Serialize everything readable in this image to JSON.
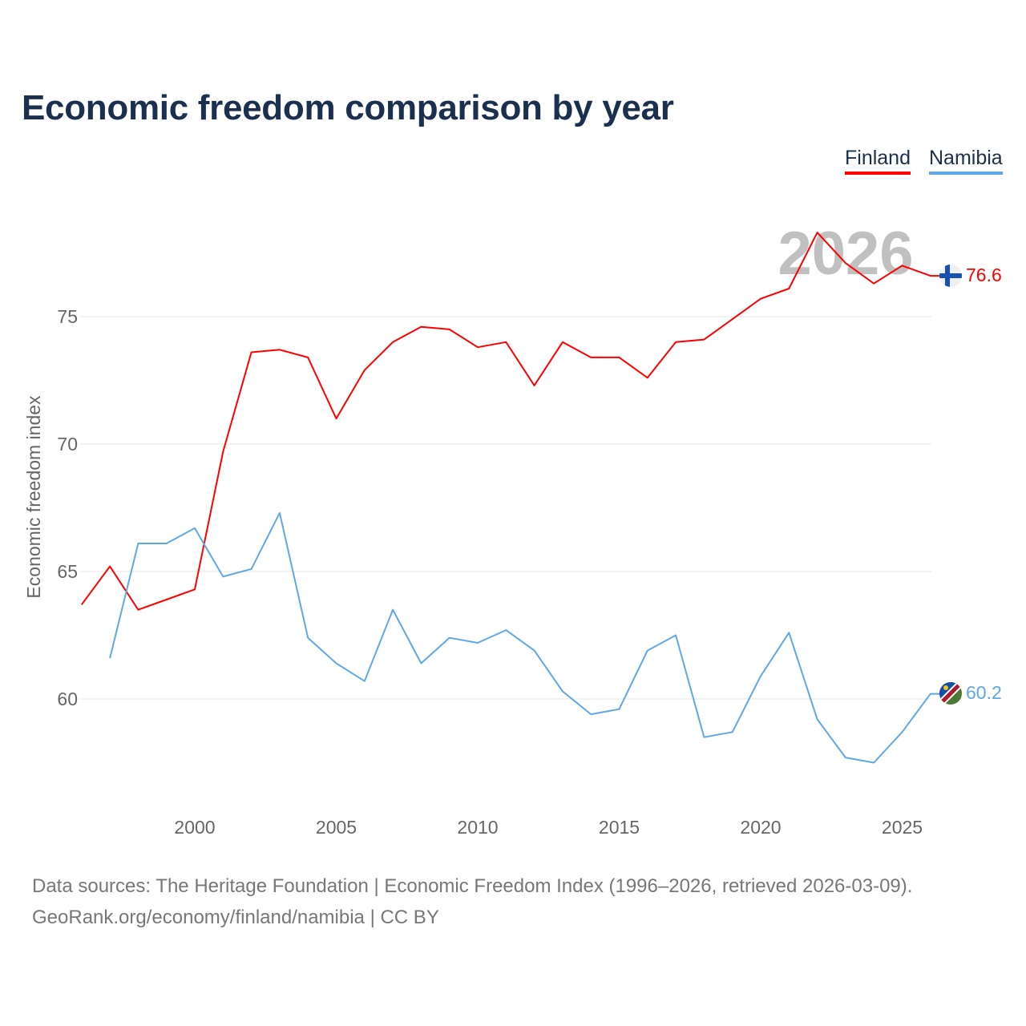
{
  "title": "Economic freedom comparison by year",
  "footer": {
    "line1": "Data sources: The Heritage Foundation | Economic Freedom Index (1996–2026, retrieved 2026-03-09).",
    "line2": "GeoRank.org/economy/finland/namibia | CC BY"
  },
  "chart_data": {
    "type": "line",
    "title": "Economic freedom comparison by year",
    "xlabel": "",
    "ylabel": "Economic freedom index",
    "xlim": [
      1996,
      2026
    ],
    "ylim": [
      55.5,
      79
    ],
    "xticks": [
      2000,
      2005,
      2010,
      2015,
      2020,
      2025
    ],
    "yticks": [
      60,
      65,
      70,
      75
    ],
    "grid": true,
    "legend_position": "top-right",
    "year_watermark": "2026",
    "series": [
      {
        "name": "Finland",
        "color": "#ff0000",
        "flag_icon": "finland-flag-icon",
        "end_label": "76.6",
        "x": [
          1996,
          1997,
          1998,
          1999,
          2000,
          2001,
          2002,
          2003,
          2004,
          2005,
          2006,
          2007,
          2008,
          2009,
          2010,
          2011,
          2012,
          2013,
          2014,
          2015,
          2016,
          2017,
          2018,
          2019,
          2020,
          2021,
          2022,
          2023,
          2024,
          2025,
          2026
        ],
        "values": [
          63.7,
          65.2,
          63.5,
          63.9,
          64.3,
          69.7,
          73.6,
          73.7,
          73.4,
          71.0,
          72.9,
          74.0,
          74.6,
          74.5,
          73.8,
          74.0,
          72.3,
          74.0,
          73.4,
          73.4,
          72.6,
          74.0,
          74.1,
          74.9,
          75.7,
          76.1,
          78.3,
          77.1,
          76.3,
          77.0,
          76.6
        ]
      },
      {
        "name": "Namibia",
        "color": "#5fa8e8",
        "flag_icon": "namibia-flag-icon",
        "end_label": "60.2",
        "x": [
          1997,
          1998,
          1999,
          2000,
          2001,
          2002,
          2003,
          2004,
          2005,
          2006,
          2007,
          2008,
          2009,
          2010,
          2011,
          2012,
          2013,
          2014,
          2015,
          2016,
          2017,
          2018,
          2019,
          2020,
          2021,
          2022,
          2023,
          2024,
          2025,
          2026
        ],
        "values": [
          61.6,
          66.1,
          66.1,
          66.7,
          64.8,
          65.1,
          67.3,
          62.4,
          61.4,
          60.7,
          63.5,
          61.4,
          62.4,
          62.2,
          62.7,
          61.9,
          60.3,
          59.4,
          59.6,
          61.9,
          62.5,
          58.5,
          58.7,
          60.9,
          62.6,
          59.2,
          57.7,
          57.5,
          58.7,
          60.2
        ]
      }
    ]
  }
}
